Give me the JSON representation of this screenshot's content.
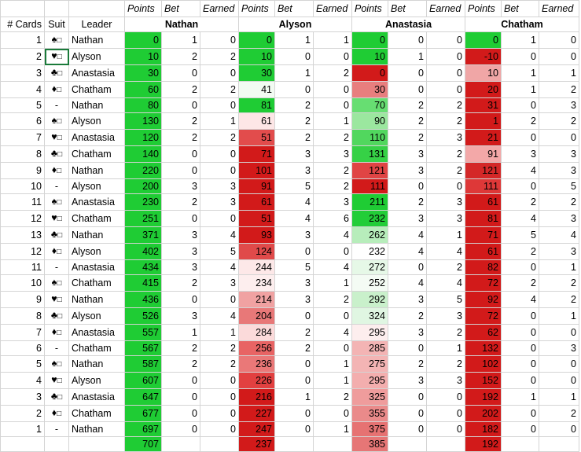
{
  "headers": {
    "cards": "# Cards",
    "suit": "Suit",
    "leader": "Leader",
    "points": "Points",
    "bet": "Bet",
    "earned": "Earned",
    "players": [
      "Nathan",
      "Alyson",
      "Anastasia",
      "Chatham"
    ]
  },
  "rows": [
    {
      "cards": "1",
      "suit": "♠",
      "leader": "Nathan",
      "p": [
        [
          "0",
          "1",
          "0"
        ],
        [
          "0",
          "1",
          "1"
        ],
        [
          "0",
          "0",
          "0"
        ],
        [
          "0",
          "1",
          "0"
        ]
      ]
    },
    {
      "cards": "2",
      "suit": "♥",
      "leader": "Alyson",
      "p": [
        [
          "10",
          "2",
          "2"
        ],
        [
          "10",
          "0",
          "0"
        ],
        [
          "10",
          "1",
          "0"
        ],
        [
          "-10",
          "0",
          "0"
        ]
      ]
    },
    {
      "cards": "3",
      "suit": "♣",
      "leader": "Anastasia",
      "p": [
        [
          "30",
          "0",
          "0"
        ],
        [
          "30",
          "1",
          "2"
        ],
        [
          "0",
          "0",
          "0"
        ],
        [
          "10",
          "1",
          "1"
        ]
      ]
    },
    {
      "cards": "4",
      "suit": "♦",
      "leader": "Chatham",
      "p": [
        [
          "60",
          "2",
          "2"
        ],
        [
          "41",
          "0",
          "0"
        ],
        [
          "30",
          "0",
          "0"
        ],
        [
          "20",
          "1",
          "2"
        ]
      ]
    },
    {
      "cards": "5",
      "suit": "-",
      "leader": "Nathan",
      "p": [
        [
          "80",
          "0",
          "0"
        ],
        [
          "81",
          "2",
          "0"
        ],
        [
          "70",
          "2",
          "2"
        ],
        [
          "31",
          "0",
          "3"
        ]
      ]
    },
    {
      "cards": "6",
      "suit": "♠",
      "leader": "Alyson",
      "p": [
        [
          "130",
          "2",
          "1"
        ],
        [
          "61",
          "2",
          "1"
        ],
        [
          "90",
          "2",
          "2"
        ],
        [
          "1",
          "2",
          "2"
        ]
      ]
    },
    {
      "cards": "7",
      "suit": "♥",
      "leader": "Anastasia",
      "p": [
        [
          "120",
          "2",
          "2"
        ],
        [
          "51",
          "2",
          "2"
        ],
        [
          "110",
          "2",
          "3"
        ],
        [
          "21",
          "0",
          "0"
        ]
      ]
    },
    {
      "cards": "8",
      "suit": "♣",
      "leader": "Chatham",
      "p": [
        [
          "140",
          "0",
          "0"
        ],
        [
          "71",
          "3",
          "3"
        ],
        [
          "131",
          "3",
          "2"
        ],
        [
          "91",
          "3",
          "3"
        ]
      ]
    },
    {
      "cards": "9",
      "suit": "♦",
      "leader": "Nathan",
      "p": [
        [
          "220",
          "0",
          "0"
        ],
        [
          "101",
          "3",
          "2"
        ],
        [
          "121",
          "3",
          "2"
        ],
        [
          "121",
          "4",
          "3"
        ]
      ]
    },
    {
      "cards": "10",
      "suit": "-",
      "leader": "Alyson",
      "p": [
        [
          "200",
          "3",
          "3"
        ],
        [
          "91",
          "5",
          "2"
        ],
        [
          "111",
          "0",
          "0"
        ],
        [
          "111",
          "0",
          "5"
        ]
      ]
    },
    {
      "cards": "11",
      "suit": "♠",
      "leader": "Anastasia",
      "p": [
        [
          "230",
          "2",
          "3"
        ],
        [
          "61",
          "4",
          "3"
        ],
        [
          "211",
          "2",
          "3"
        ],
        [
          "61",
          "2",
          "2"
        ]
      ]
    },
    {
      "cards": "12",
      "suit": "♥",
      "leader": "Chatham",
      "p": [
        [
          "251",
          "0",
          "0"
        ],
        [
          "51",
          "4",
          "6"
        ],
        [
          "232",
          "3",
          "3"
        ],
        [
          "81",
          "4",
          "3"
        ]
      ]
    },
    {
      "cards": "13",
      "suit": "♣",
      "leader": "Nathan",
      "p": [
        [
          "371",
          "3",
          "4"
        ],
        [
          "93",
          "3",
          "4"
        ],
        [
          "262",
          "4",
          "1"
        ],
        [
          "71",
          "5",
          "4"
        ]
      ]
    },
    {
      "cards": "12",
      "suit": "♦",
      "leader": "Alyson",
      "p": [
        [
          "402",
          "3",
          "5"
        ],
        [
          "124",
          "0",
          "0"
        ],
        [
          "232",
          "4",
          "4"
        ],
        [
          "61",
          "2",
          "3"
        ]
      ]
    },
    {
      "cards": "11",
      "suit": "-",
      "leader": "Anastasia",
      "p": [
        [
          "434",
          "3",
          "4"
        ],
        [
          "244",
          "5",
          "4"
        ],
        [
          "272",
          "0",
          "2"
        ],
        [
          "82",
          "0",
          "1"
        ]
      ]
    },
    {
      "cards": "10",
      "suit": "♠",
      "leader": "Chatham",
      "p": [
        [
          "415",
          "2",
          "3"
        ],
        [
          "234",
          "3",
          "1"
        ],
        [
          "252",
          "4",
          "4"
        ],
        [
          "72",
          "2",
          "2"
        ]
      ]
    },
    {
      "cards": "9",
      "suit": "♥",
      "leader": "Nathan",
      "p": [
        [
          "436",
          "0",
          "0"
        ],
        [
          "214",
          "3",
          "2"
        ],
        [
          "292",
          "3",
          "5"
        ],
        [
          "92",
          "4",
          "2"
        ]
      ]
    },
    {
      "cards": "8",
      "suit": "♣",
      "leader": "Alyson",
      "p": [
        [
          "526",
          "3",
          "4"
        ],
        [
          "204",
          "0",
          "0"
        ],
        [
          "324",
          "2",
          "3"
        ],
        [
          "72",
          "0",
          "1"
        ]
      ]
    },
    {
      "cards": "7",
      "suit": "♦",
      "leader": "Anastasia",
      "p": [
        [
          "557",
          "1",
          "1"
        ],
        [
          "284",
          "2",
          "4"
        ],
        [
          "295",
          "3",
          "2"
        ],
        [
          "62",
          "0",
          "0"
        ]
      ]
    },
    {
      "cards": "6",
      "suit": "-",
      "leader": "Chatham",
      "p": [
        [
          "567",
          "2",
          "2"
        ],
        [
          "256",
          "2",
          "0"
        ],
        [
          "285",
          "0",
          "1"
        ],
        [
          "132",
          "0",
          "3"
        ]
      ]
    },
    {
      "cards": "5",
      "suit": "♠",
      "leader": "Nathan",
      "p": [
        [
          "587",
          "2",
          "2"
        ],
        [
          "236",
          "0",
          "1"
        ],
        [
          "275",
          "2",
          "2"
        ],
        [
          "102",
          "0",
          "0"
        ]
      ]
    },
    {
      "cards": "4",
      "suit": "♥",
      "leader": "Alyson",
      "p": [
        [
          "607",
          "0",
          "0"
        ],
        [
          "226",
          "0",
          "1"
        ],
        [
          "295",
          "3",
          "3"
        ],
        [
          "152",
          "0",
          "0"
        ]
      ]
    },
    {
      "cards": "3",
      "suit": "♣",
      "leader": "Anastasia",
      "p": [
        [
          "647",
          "0",
          "0"
        ],
        [
          "216",
          "1",
          "2"
        ],
        [
          "325",
          "0",
          "0"
        ],
        [
          "192",
          "1",
          "1"
        ]
      ]
    },
    {
      "cards": "2",
      "suit": "♦",
      "leader": "Chatham",
      "p": [
        [
          "677",
          "0",
          "0"
        ],
        [
          "227",
          "0",
          "0"
        ],
        [
          "355",
          "0",
          "0"
        ],
        [
          "202",
          "0",
          "2"
        ]
      ]
    },
    {
      "cards": "1",
      "suit": "-",
      "leader": "Nathan",
      "p": [
        [
          "697",
          "0",
          "0"
        ],
        [
          "247",
          "0",
          "1"
        ],
        [
          "375",
          "0",
          "0"
        ],
        [
          "182",
          "0",
          "0"
        ]
      ]
    }
  ],
  "totals": [
    "707",
    "237",
    "385",
    "192"
  ],
  "colors": {
    "green": "#1fcc34",
    "red": "#d21a1a",
    "white": "#ffffff",
    "grid": "#d4d4d4",
    "selection": "#1a7a3a"
  },
  "bgPoints": [
    [
      "#1fcc34",
      "#1fcc34",
      "#1fcc34",
      "#1fcc34"
    ],
    [
      "#1fcc34",
      "#1fcc34",
      "#1fcc34",
      "#d21a1a"
    ],
    [
      "#1fcc34",
      "#1fcc34",
      "#d21a1a",
      "#f0a6a6"
    ],
    [
      "#1fcc34",
      "#f2fbf2",
      "#e87e7e",
      "#d21a1a"
    ],
    [
      "#1fcc34",
      "#1fcc34",
      "#67de72",
      "#d21a1a"
    ],
    [
      "#1fcc34",
      "#fde6e6",
      "#9be79f",
      "#d21a1a"
    ],
    [
      "#1fcc34",
      "#e24c4c",
      "#51d75e",
      "#d21a1a"
    ],
    [
      "#1fcc34",
      "#d21a1a",
      "#36d146",
      "#f3a8a8"
    ],
    [
      "#1fcc34",
      "#d21a1a",
      "#e04444",
      "#d42828"
    ],
    [
      "#1fcc34",
      "#d21a1a",
      "#d21a1a",
      "#de3838"
    ],
    [
      "#1fcc34",
      "#d21a1a",
      "#1fcc34",
      "#d21a1a"
    ],
    [
      "#1fcc34",
      "#d21a1a",
      "#22cd38",
      "#d21a1a"
    ],
    [
      "#1fcc34",
      "#d21a1a",
      "#b7edbb",
      "#d21a1a"
    ],
    [
      "#1fcc34",
      "#e04a4a",
      "#ffffff",
      "#d21a1a"
    ],
    [
      "#1fcc34",
      "#fde8e8",
      "#e6f8e7",
      "#d21a1a"
    ],
    [
      "#1fcc34",
      "#fdeeee",
      "#f4fbf4",
      "#d21a1a"
    ],
    [
      "#1fcc34",
      "#f0a2a2",
      "#c9f0cb",
      "#d21a1a"
    ],
    [
      "#1fcc34",
      "#e87878",
      "#e0f6e2",
      "#d21a1a"
    ],
    [
      "#1fcc34",
      "#fbdada",
      "#fdeeee",
      "#d21a1a"
    ],
    [
      "#1fcc34",
      "#e86464",
      "#f3b4b4",
      "#d21a1a"
    ],
    [
      "#1fcc34",
      "#ea7878",
      "#f3b4b4",
      "#d21a1a"
    ],
    [
      "#1fcc34",
      "#e24040",
      "#f3aeae",
      "#d21a1a"
    ],
    [
      "#1fcc34",
      "#d21a1a",
      "#ef9c9c",
      "#d21a1a"
    ],
    [
      "#1fcc34",
      "#d21a1a",
      "#ea8a8a",
      "#d21a1a"
    ],
    [
      "#1fcc34",
      "#d21a1a",
      "#e67272",
      "#d21a1a"
    ]
  ],
  "bgTotals": [
    "#1fcc34",
    "#d21a1a",
    "#e67676",
    "#d21a1a"
  ],
  "suitIconNames": {
    "♠": "spade-icon",
    "♥": "heart-icon",
    "♣": "club-icon",
    "♦": "diamond-icon",
    "-": "no-trump-dash"
  },
  "suitBox": "□",
  "selectedCell": {
    "row": 1,
    "col": "suit"
  }
}
